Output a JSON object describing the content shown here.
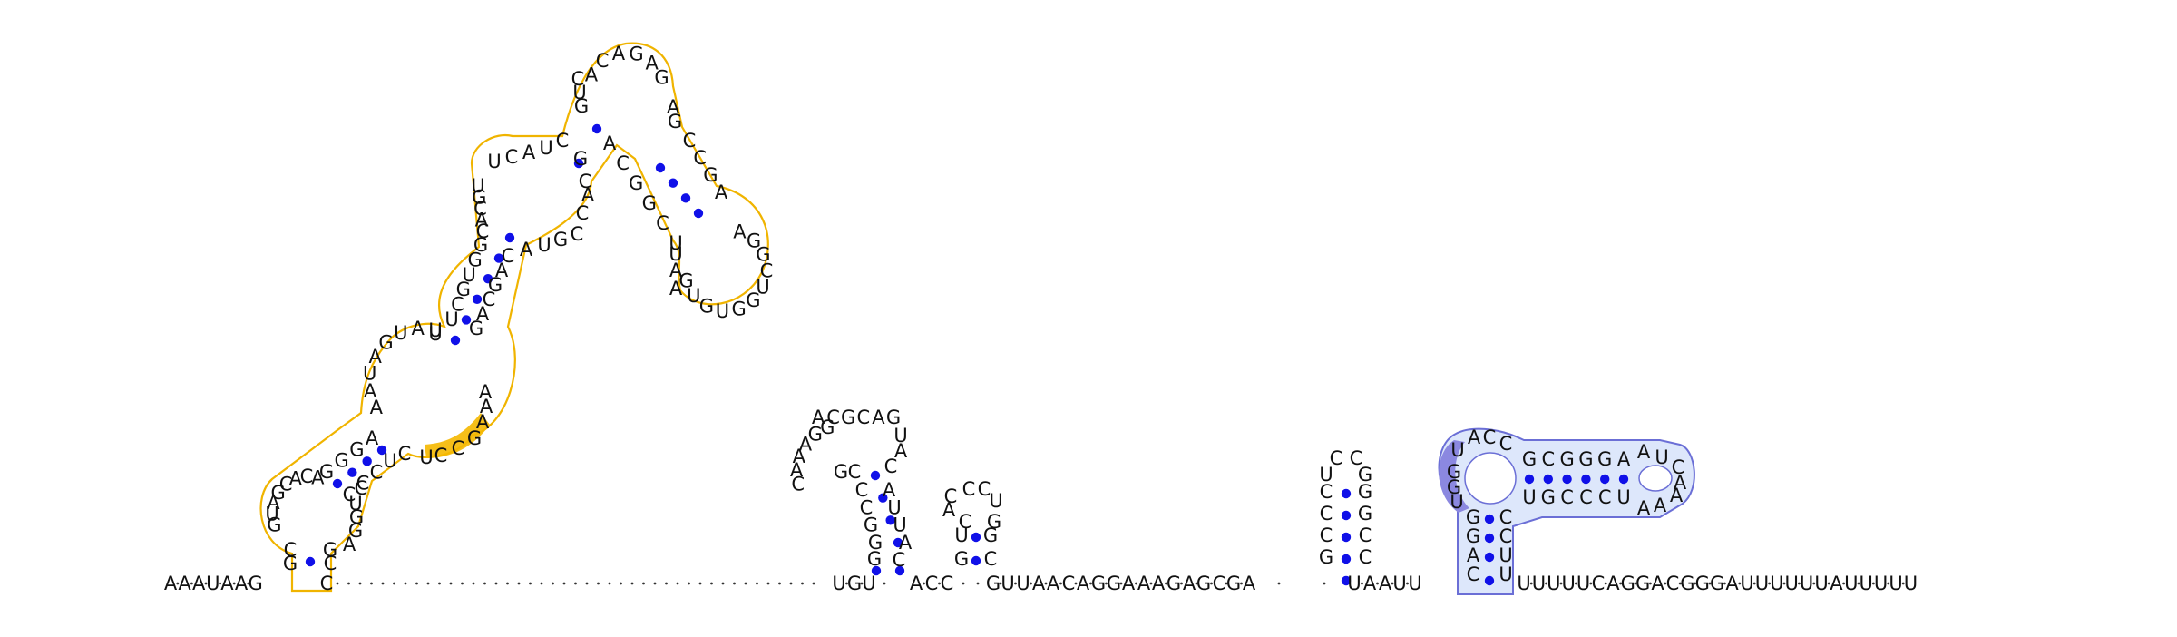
{
  "diagram": {
    "type": "rna-secondary-structure",
    "backbone": {
      "left": "AAAUAAG",
      "left_tail": "C",
      "middle": "UGUACCGUUAACAGGAAAGAGCGAUAAUU",
      "right": "UUUUUCAGGACGGGAUUUUUUAUUUUU"
    },
    "structure_1": {
      "highlight_color": "#f5b800",
      "outline_color": "#f0b400",
      "stem_a": "GUAGCACAGGCUCCG",
      "loop_top": "UCAUCAGAG",
      "arm_right": "CCGAAGGC",
      "hairpin": "AGGCUGGUGUCGGA",
      "highlight_seq": "CCG"
    },
    "structure_2": {
      "loop": "AGGCACGCAGUA",
      "stem": "CCGGUACUUAUCC",
      "small_loop": "ACCGCCUGGC"
    },
    "structure_3": {
      "loop": "UCCG",
      "stem": "CCCCGGGG"
    },
    "structure_4": {
      "outline_color": "#6b6fd6",
      "fill_color": "#dde7fb",
      "highlight_color": "#8b88e0",
      "left_stem": "UGGUGAC",
      "top": "ACCGCGGGAAUC",
      "bottom": "UGCCCUAA",
      "right_stem": "CCU"
    }
  }
}
